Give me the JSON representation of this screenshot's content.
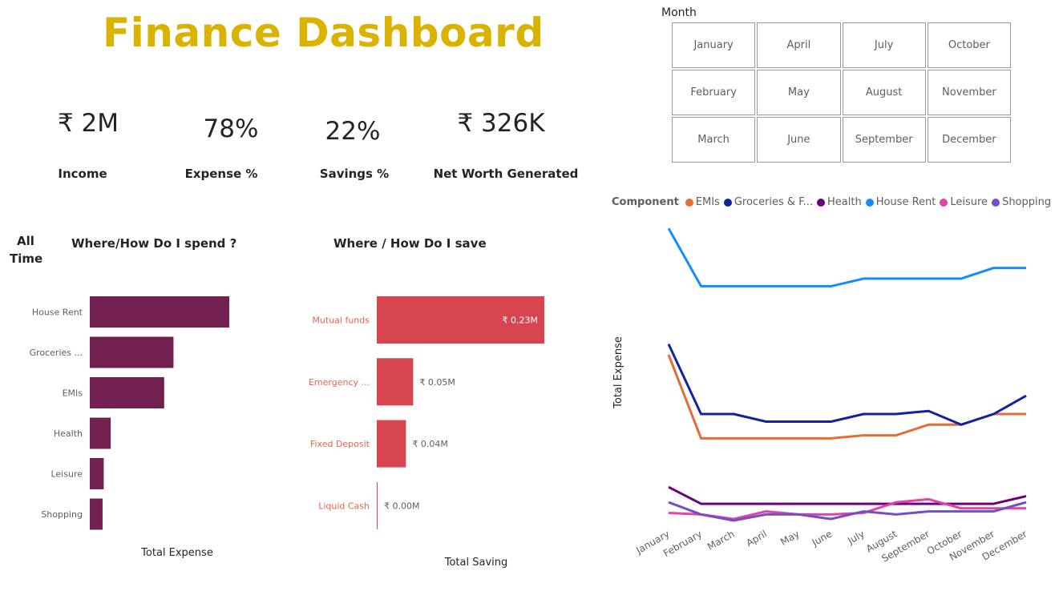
{
  "title": "Finance Dashboard",
  "kpis": [
    {
      "value": "₹ 2M",
      "label": "Income"
    },
    {
      "value": "78%",
      "label": "Expense %"
    },
    {
      "value": "22%",
      "label": "Savings %"
    },
    {
      "value": "₹ 326K",
      "label": "Net Worth Generated"
    }
  ],
  "slicer": {
    "title": "Month",
    "months": [
      "January",
      "April",
      "July",
      "October",
      "February",
      "May",
      "August",
      "November",
      "March",
      "June",
      "September",
      "December"
    ]
  },
  "period_label": "All Time",
  "colors": {
    "title": "#d9b300",
    "spend_bar": "#722050",
    "save_bar": "#d64550",
    "save_label": "#e06650"
  },
  "chart_data": [
    {
      "type": "bar",
      "orientation": "horizontal",
      "title": "Where/How Do I spend ?",
      "xlabel": "Total Expense",
      "categories": [
        "House Rent",
        "Groceries ...",
        "EMIs",
        "Health",
        "Leisure",
        "Shopping"
      ],
      "values": [
        0.6,
        0.36,
        0.32,
        0.09,
        0.06,
        0.055
      ],
      "xlim": [
        0,
        1
      ]
    },
    {
      "type": "bar",
      "orientation": "horizontal",
      "title": "Where / How Do I save",
      "xlabel": "Total Saving",
      "categories": [
        "Mutual funds",
        "Emergency ...",
        "Fixed Deposit",
        "Liquid Cash"
      ],
      "values": [
        0.23,
        0.05,
        0.04,
        0.0
      ],
      "data_labels": [
        "₹ 0.23M",
        "₹ 0.05M",
        "₹ 0.04M",
        "₹ 0.00M"
      ],
      "xlim": [
        0,
        0.23
      ]
    },
    {
      "type": "line",
      "ylabel": "Total Expense",
      "legend_title": "Component",
      "legend_position": "top",
      "x": [
        "January",
        "February",
        "March",
        "April",
        "May",
        "June",
        "July",
        "August",
        "September",
        "October",
        "November",
        "December"
      ],
      "ylim": [
        0,
        20
      ],
      "series": [
        {
          "name": "EMIs",
          "color": "#e66c37",
          "values": [
            10.9,
            5.4,
            5.4,
            5.4,
            5.4,
            5.4,
            5.6,
            5.6,
            6.3,
            6.3,
            7.0,
            7.0
          ]
        },
        {
          "name": "Groceries & F...",
          "color": "#12239e",
          "values": [
            11.6,
            7.0,
            7.0,
            6.5,
            6.5,
            6.5,
            7.0,
            7.0,
            7.2,
            6.3,
            7.0,
            8.2
          ]
        },
        {
          "name": "Health",
          "color": "#6b007b",
          "values": [
            2.2,
            1.1,
            1.1,
            1.1,
            1.1,
            1.1,
            1.1,
            1.1,
            1.1,
            1.1,
            1.1,
            1.6
          ]
        },
        {
          "name": "House Rent",
          "color": "#118dff",
          "values": [
            19.2,
            15.4,
            15.4,
            15.4,
            15.4,
            15.4,
            15.9,
            15.9,
            15.9,
            15.9,
            16.6,
            16.6
          ]
        },
        {
          "name": "Leisure",
          "color": "#e044a7",
          "values": [
            0.5,
            0.4,
            0.1,
            0.6,
            0.4,
            0.4,
            0.5,
            1.2,
            1.4,
            0.8,
            0.8,
            0.8
          ]
        },
        {
          "name": "Shopping",
          "color": "#744ec2",
          "values": [
            1.2,
            0.4,
            0.0,
            0.4,
            0.4,
            0.1,
            0.6,
            0.4,
            0.6,
            0.6,
            0.6,
            1.2
          ]
        }
      ]
    }
  ]
}
